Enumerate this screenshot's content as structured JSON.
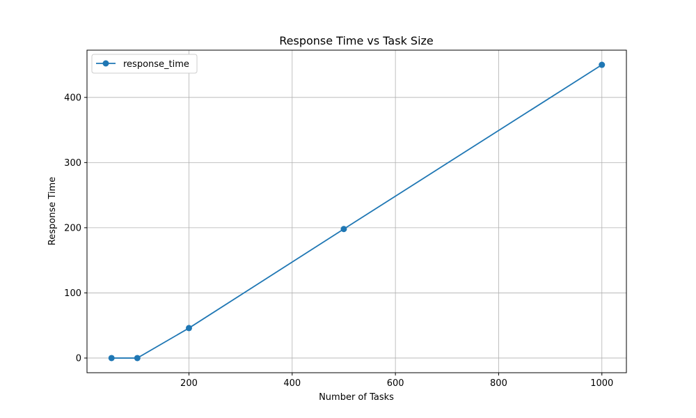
{
  "chart_data": {
    "type": "line",
    "title": "Response Time vs Task Size",
    "xlabel": "Number of Tasks",
    "ylabel": "Response Time",
    "xlim": [
      2.5,
      1047.5
    ],
    "ylim": [
      -22.5,
      472.5
    ],
    "xticks": [
      200,
      400,
      600,
      800,
      1000
    ],
    "yticks": [
      0,
      100,
      200,
      300,
      400
    ],
    "grid": true,
    "legend_position": "top-left",
    "series": [
      {
        "name": "response_time",
        "color": "#1f77b4",
        "marker": "circle",
        "x": [
          50,
          100,
          200,
          500,
          1000
        ],
        "y": [
          0,
          0,
          46,
          198,
          450
        ]
      }
    ]
  }
}
